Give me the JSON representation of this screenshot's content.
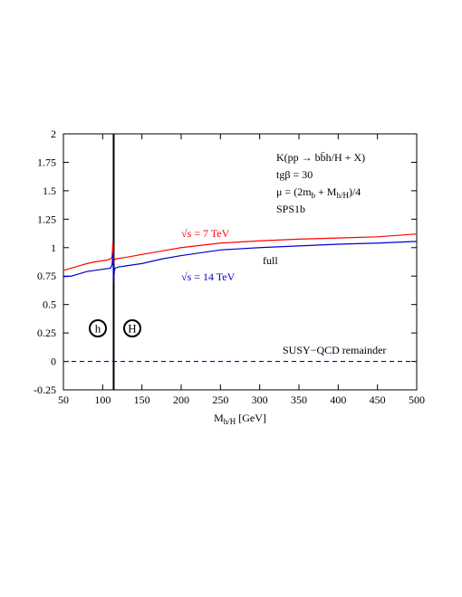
{
  "chart_data": {
    "type": "line",
    "title": "",
    "xlabel": {
      "base": "M",
      "sub": "h/H",
      "tail": " [GeV]"
    },
    "ylabel": "",
    "xlim": [
      50,
      500
    ],
    "ylim": [
      -0.25,
      2
    ],
    "x_ticks": [
      50,
      100,
      150,
      200,
      250,
      300,
      350,
      400,
      450,
      500
    ],
    "y_ticks": [
      2,
      1.75,
      1.5,
      1.25,
      1,
      0.75,
      0.5,
      0.25,
      0,
      -0.25
    ],
    "x_tick_labels": [
      "50",
      "100",
      "150",
      "200",
      "250",
      "300",
      "350",
      "400",
      "450",
      "500"
    ],
    "y_tick_labels": [
      "2",
      "1.75",
      "1.5",
      "1.25",
      "1",
      "0.75",
      "0.5",
      "0.25",
      "0",
      "-0.25"
    ],
    "grid": false,
    "legend": "none",
    "vertical_line_x": 114,
    "series": [
      {
        "color": "#ff0000",
        "x": [
          50,
          60,
          70,
          80,
          90,
          100,
          105,
          110,
          112,
          113,
          114,
          115,
          116,
          120,
          130,
          150,
          175,
          200,
          250,
          300,
          350,
          400,
          450,
          500
        ],
        "y": [
          0.8,
          0.82,
          0.84,
          0.86,
          0.875,
          0.885,
          0.89,
          0.9,
          0.92,
          1.05,
          0.86,
          0.89,
          0.9,
          0.905,
          0.915,
          0.94,
          0.97,
          1.0,
          1.04,
          1.06,
          1.075,
          1.085,
          1.095,
          1.12
        ]
      },
      {
        "color": "#0000cc",
        "x": [
          50,
          60,
          70,
          80,
          90,
          100,
          105,
          110,
          112,
          113,
          114,
          115,
          116,
          120,
          130,
          150,
          175,
          200,
          250,
          300,
          350,
          400,
          450,
          500
        ],
        "y": [
          0.745,
          0.75,
          0.77,
          0.79,
          0.8,
          0.81,
          0.815,
          0.82,
          0.85,
          0.95,
          0.7,
          0.8,
          0.82,
          0.83,
          0.84,
          0.86,
          0.9,
          0.93,
          0.98,
          1.0,
          1.015,
          1.03,
          1.04,
          1.055
        ]
      },
      {
        "color": "#0000cc",
        "dashed": true,
        "x": [
          50,
          500
        ],
        "y": [
          0,
          0
        ]
      }
    ],
    "annotations": {
      "process": {
        "pre": "K(pp ",
        "arrow": "→",
        "post": " bb̄h/H + X)"
      },
      "tanbeta": "tgβ = 30",
      "scale": {
        "pre": "μ = (2m",
        "sub1": "b",
        "mid": " + M",
        "sub2": "h/H",
        "post": ")/4"
      },
      "scenario": "SPS1b",
      "red_label": "√s = 7 TeV",
      "blue_label": "√s = 14 TeV",
      "full_label": "full",
      "remainder_label": "SUSY−QCD remainder",
      "h_marker": "h",
      "H_marker": "H"
    }
  }
}
